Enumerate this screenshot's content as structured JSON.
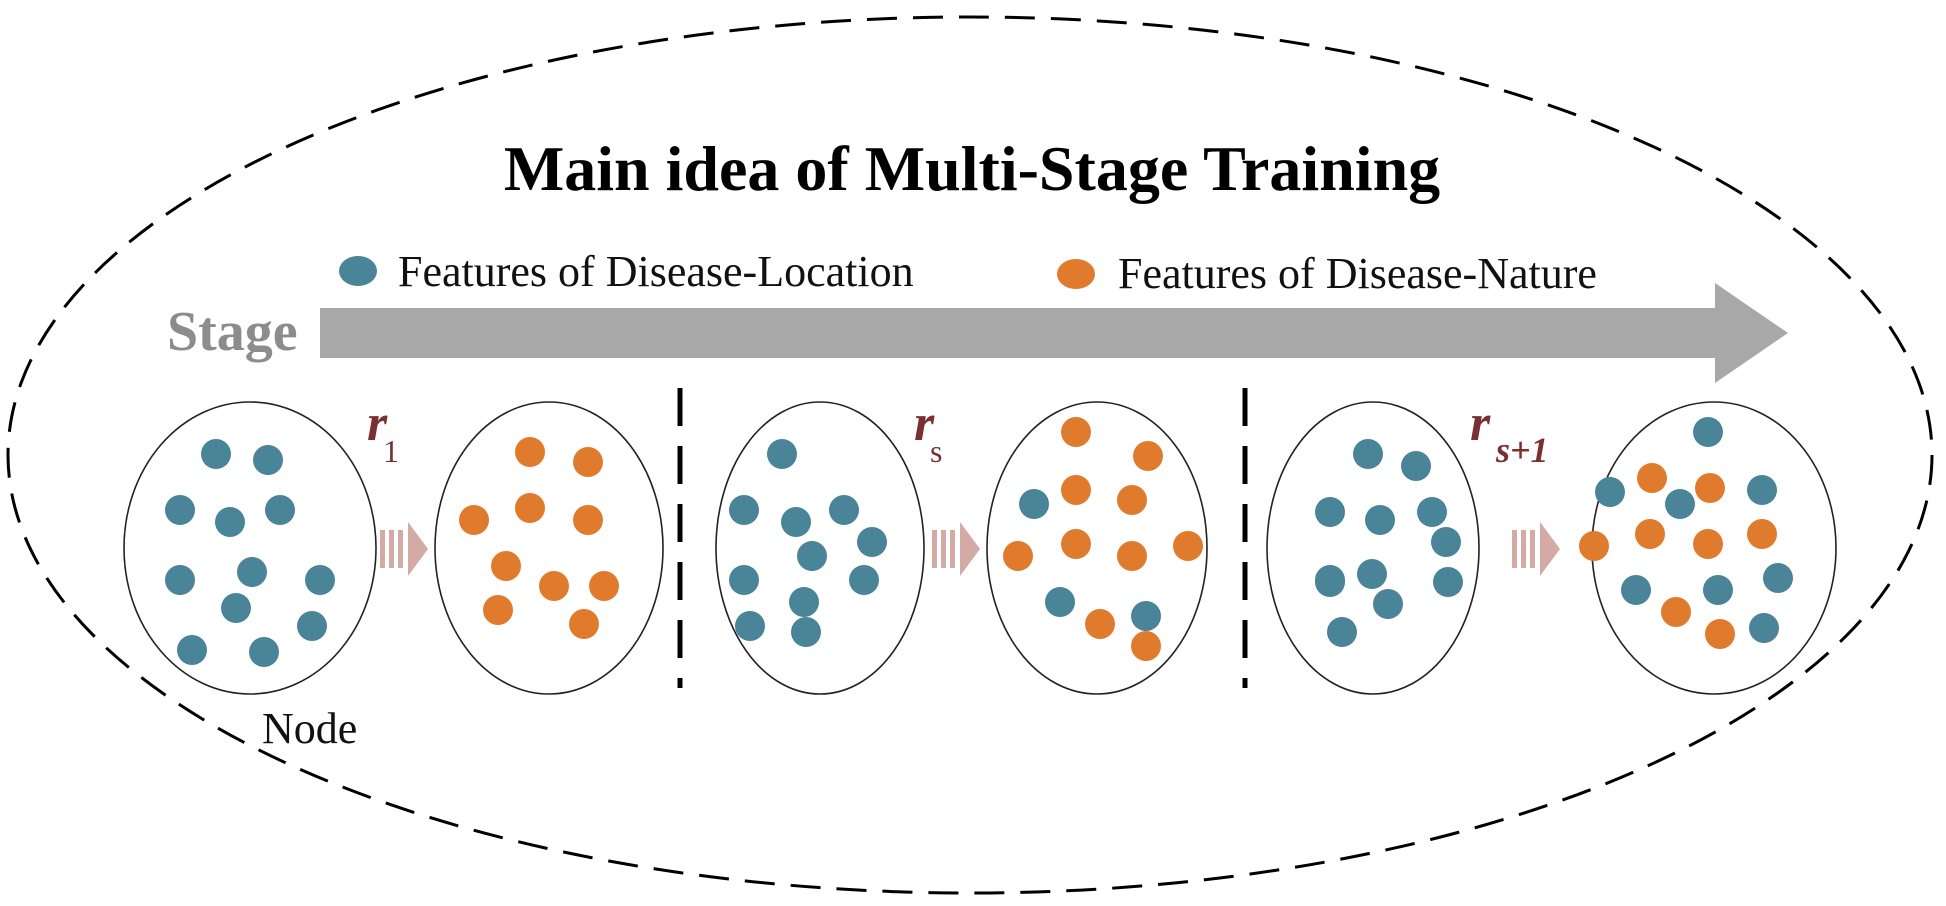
{
  "title": "Main idea of Multi-Stage Training",
  "legend": {
    "location_label": "Features of Disease-Location",
    "nature_label": "Features of Disease-Nature"
  },
  "stage_label": "Stage",
  "node_label": "Node",
  "relations": [
    {
      "symbol": "r",
      "subscript": "1"
    },
    {
      "symbol": "r",
      "subscript": "s"
    },
    {
      "symbol": "r",
      "subscript": "s+1"
    }
  ],
  "colors": {
    "location": "#4a8499",
    "nature": "#e07b2e",
    "stage_arrow": "#a8a8a8",
    "transition_arrow": "#d4aaa4",
    "relation_text": "#7a3030"
  }
}
